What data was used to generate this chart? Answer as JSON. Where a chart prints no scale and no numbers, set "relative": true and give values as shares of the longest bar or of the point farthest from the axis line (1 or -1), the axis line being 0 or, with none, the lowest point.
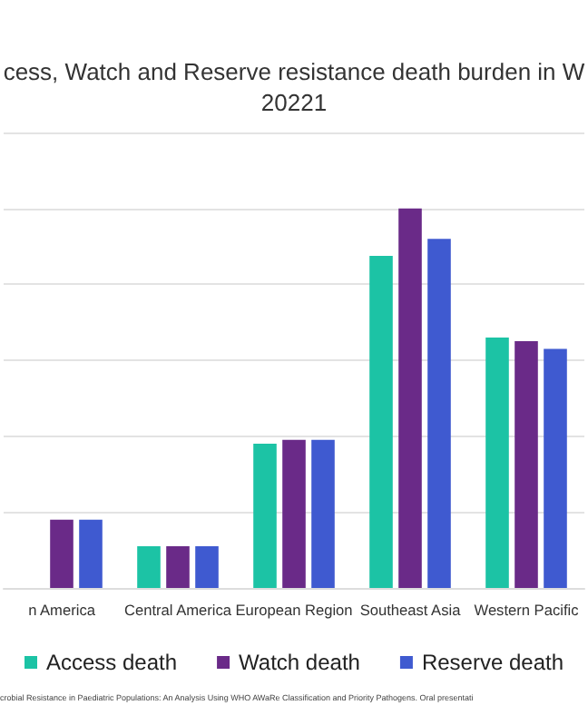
{
  "chart_data": {
    "type": "bar",
    "title": "cess, Watch and Reserve resistance death burden in W\n20221",
    "relative": true,
    "grid": "y",
    "legend": "bottom",
    "categories": [
      "n America",
      "Central America",
      "European Region",
      "Southeast Asia",
      "Western Pacific"
    ],
    "series": [
      {
        "name": "Access death",
        "color": "#1cc3a5",
        "values": [
          null,
          0.11,
          0.38,
          0.875,
          0.66
        ]
      },
      {
        "name": "Watch death",
        "color": "#6a2a88",
        "values": [
          0.18,
          0.11,
          0.39,
          1,
          0.65
        ]
      },
      {
        "name": "Reserve death",
        "color": "#3f5ad0",
        "values": [
          0.18,
          0.11,
          0.39,
          0.92,
          0.63
        ]
      }
    ],
    "annotations": [
      "crobial Resistance in Paediatric Populations: An Analysis Using WHO AWaRe Classification and Priority Pathogens. Oral presentati"
    ]
  }
}
